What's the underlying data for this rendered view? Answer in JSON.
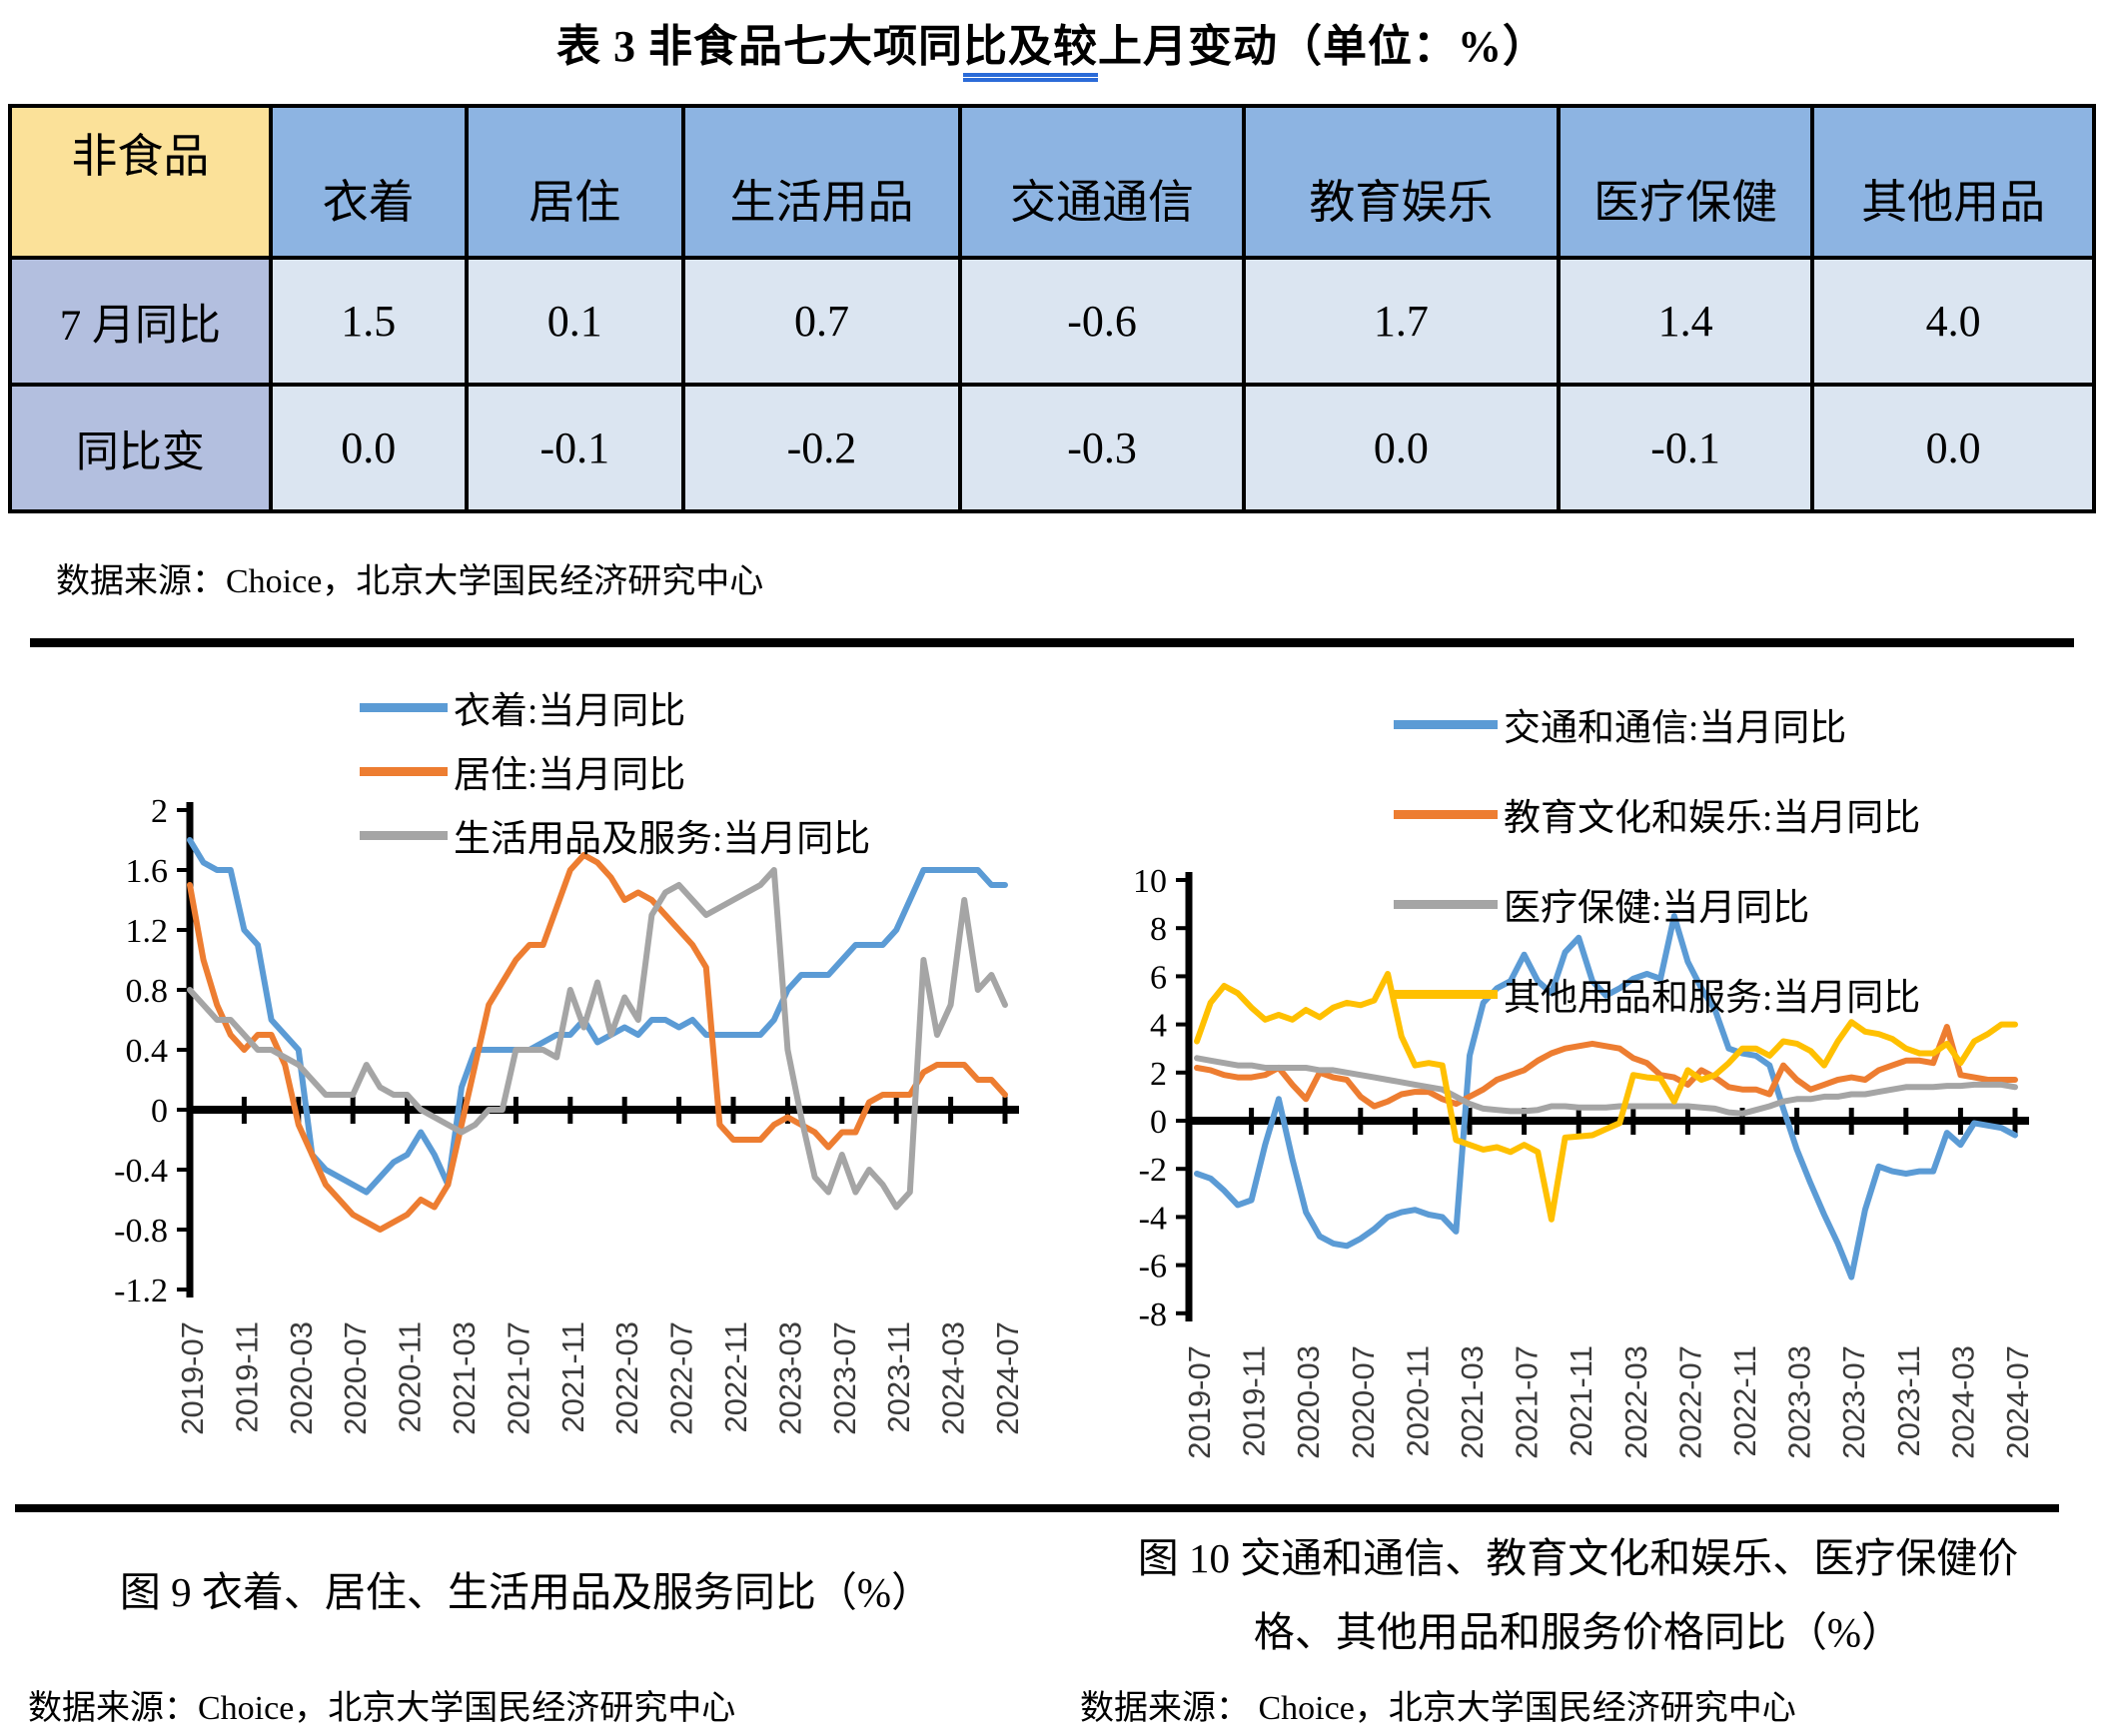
{
  "title": {
    "before": "表 3  非食品七大项同",
    "underlined": "比及较",
    "after": "上月变动（单位：%）"
  },
  "table": {
    "corner_label": "非食品",
    "columns": [
      "衣着",
      "居住",
      "生活用品",
      "交通通信",
      "教育娱乐",
      "医疗保健",
      "其他用品"
    ],
    "rows": [
      {
        "label": "7 月同比",
        "values": [
          "1.5",
          "0.1",
          "0.7",
          "-0.6",
          "1.7",
          "1.4",
          "4.0"
        ]
      },
      {
        "label": "同比变",
        "values": [
          "0.0",
          "-0.1",
          "-0.2",
          "-0.3",
          "0.0",
          "-0.1",
          "0.0"
        ]
      }
    ],
    "source": "数据来源：Choice，北京大学国民经济研究中心",
    "colors": {
      "corner_bg": "#FBE199",
      "header_bg": "#8DB4E2",
      "rowlabel_bg": "#B3BFDF",
      "cell_bg": "#DBE5F1",
      "border": "#000000"
    }
  },
  "chart_data": [
    {
      "type": "line",
      "caption_lines": [
        "图 9  衣着、居住、生活用品及服务同比（%）"
      ],
      "source": "数据来源：Choice，北京大学国民经济研究中心",
      "x_start": "2019-07",
      "x_end": "2024-07",
      "n_points": 61,
      "tick_every": 4,
      "x_tick_labels": [
        "2019-07",
        "2019-11",
        "2020-03",
        "2020-07",
        "2020-11",
        "2021-03",
        "2021-07",
        "2021-11",
        "2022-03",
        "2022-07",
        "2022-11",
        "2023-03",
        "2023-07",
        "2023-11",
        "2024-03",
        "2024-07"
      ],
      "ylim": [
        -1.2,
        2
      ],
      "y_ticks": [
        2,
        1.6,
        1.2,
        0.8,
        0.4,
        0,
        -0.4,
        -0.8,
        -1.2
      ],
      "y_tick_labels": [
        "2",
        "1.6",
        "1.2",
        "0.8",
        "0.4",
        "0",
        "-0.4",
        "-0.8",
        "-1.2"
      ],
      "grid": false,
      "legend_position": "top-center-overlay",
      "series": [
        {
          "name": "衣着:当月同比",
          "color": "#5B9BD5",
          "values": [
            1.8,
            1.65,
            1.6,
            1.6,
            1.2,
            1.1,
            0.6,
            0.5,
            0.4,
            -0.3,
            -0.4,
            -0.45,
            -0.5,
            -0.55,
            -0.45,
            -0.35,
            -0.3,
            -0.15,
            -0.3,
            -0.5,
            0.15,
            0.4,
            0.4,
            0.4,
            0.4,
            0.4,
            0.45,
            0.5,
            0.5,
            0.6,
            0.45,
            0.5,
            0.55,
            0.5,
            0.6,
            0.6,
            0.55,
            0.6,
            0.5,
            0.5,
            0.5,
            0.5,
            0.5,
            0.6,
            0.8,
            0.9,
            0.9,
            0.9,
            1.0,
            1.1,
            1.1,
            1.1,
            1.2,
            1.4,
            1.6,
            1.6,
            1.6,
            1.6,
            1.6,
            1.5,
            1.5
          ]
        },
        {
          "name": "居住:当月同比",
          "color": "#ED7D31",
          "values": [
            1.5,
            1.0,
            0.7,
            0.5,
            0.4,
            0.5,
            0.5,
            0.3,
            -0.1,
            -0.3,
            -0.5,
            -0.6,
            -0.7,
            -0.75,
            -0.8,
            -0.75,
            -0.7,
            -0.6,
            -0.65,
            -0.5,
            -0.1,
            0.3,
            0.7,
            0.85,
            1.0,
            1.1,
            1.1,
            1.35,
            1.6,
            1.7,
            1.65,
            1.55,
            1.4,
            1.45,
            1.4,
            1.3,
            1.2,
            1.1,
            0.95,
            -0.1,
            -0.2,
            -0.2,
            -0.2,
            -0.1,
            -0.05,
            -0.1,
            -0.15,
            -0.25,
            -0.15,
            -0.15,
            0.05,
            0.1,
            0.1,
            0.1,
            0.25,
            0.3,
            0.3,
            0.3,
            0.2,
            0.2,
            0.1
          ]
        },
        {
          "name": "生活用品及服务:当月同比",
          "color": "#A5A5A5",
          "values": [
            0.8,
            0.7,
            0.6,
            0.6,
            0.5,
            0.4,
            0.4,
            0.35,
            0.3,
            0.2,
            0.1,
            0.1,
            0.1,
            0.3,
            0.15,
            0.1,
            0.1,
            0.0,
            -0.05,
            -0.1,
            -0.15,
            -0.1,
            0.0,
            0.0,
            0.4,
            0.4,
            0.4,
            0.35,
            0.8,
            0.55,
            0.85,
            0.5,
            0.75,
            0.6,
            1.3,
            1.45,
            1.5,
            1.4,
            1.3,
            1.35,
            1.4,
            1.45,
            1.5,
            1.6,
            0.4,
            -0.05,
            -0.45,
            -0.55,
            -0.3,
            -0.55,
            -0.4,
            -0.5,
            -0.65,
            -0.55,
            1.0,
            0.5,
            0.7,
            1.4,
            0.8,
            0.9,
            0.7
          ]
        }
      ]
    },
    {
      "type": "line",
      "caption_lines": [
        "图 10  交通和通信、教育文化和娱乐、医疗保健价",
        "格、其他用品和服务价格同比（%）"
      ],
      "source": "数据来源：  Choice，北京大学国民经济研究中心",
      "x_start": "2019-07",
      "x_end": "2024-07",
      "n_points": 61,
      "tick_every": 4,
      "x_tick_labels": [
        "2019-07",
        "2019-11",
        "2020-03",
        "2020-07",
        "2020-11",
        "2021-03",
        "2021-07",
        "2021-11",
        "2022-03",
        "2022-07",
        "2022-11",
        "2023-03",
        "2023-07",
        "2023-11",
        "2024-03",
        "2024-07"
      ],
      "ylim": [
        -8,
        10
      ],
      "y_ticks": [
        10,
        8,
        6,
        4,
        2,
        0,
        -2,
        -4,
        -6,
        -8
      ],
      "y_tick_labels": [
        "10",
        "8",
        "6",
        "4",
        "2",
        "0",
        "-2",
        "-4",
        "-6",
        "-8"
      ],
      "grid": false,
      "legend_position": "top-center-overlay",
      "series": [
        {
          "name": "交通和通信:当月同比",
          "color": "#5B9BD5",
          "values": [
            -2.2,
            -2.4,
            -2.9,
            -3.5,
            -3.3,
            -1.0,
            0.9,
            -1.6,
            -3.8,
            -4.8,
            -5.1,
            -5.2,
            -4.9,
            -4.5,
            -4.0,
            -3.8,
            -3.7,
            -3.9,
            -4.0,
            -4.6,
            2.7,
            4.9,
            5.5,
            5.8,
            6.9,
            5.8,
            5.3,
            7.0,
            7.6,
            5.8,
            5.2,
            5.5,
            5.9,
            6.1,
            5.9,
            8.5,
            6.6,
            5.5,
            4.6,
            3.0,
            2.8,
            2.7,
            2.3,
            0.5,
            -1.2,
            -2.6,
            -3.9,
            -5.1,
            -6.5,
            -3.7,
            -1.9,
            -2.1,
            -2.2,
            -2.1,
            -2.1,
            -0.5,
            -1.0,
            -0.1,
            -0.2,
            -0.3,
            -0.6
          ]
        },
        {
          "name": "教育文化和娱乐:当月同比",
          "color": "#ED7D31",
          "values": [
            2.2,
            2.1,
            1.9,
            1.8,
            1.8,
            1.9,
            2.2,
            1.5,
            0.9,
            2.0,
            1.8,
            1.7,
            1.0,
            0.6,
            0.8,
            1.1,
            1.2,
            1.2,
            0.9,
            0.7,
            1.0,
            1.3,
            1.7,
            1.9,
            2.1,
            2.5,
            2.8,
            3.0,
            3.1,
            3.2,
            3.1,
            3.0,
            2.6,
            2.4,
            1.9,
            1.8,
            1.5,
            2.1,
            1.8,
            1.4,
            1.3,
            1.3,
            1.1,
            2.3,
            1.7,
            1.3,
            1.5,
            1.7,
            1.8,
            1.7,
            2.1,
            2.3,
            2.5,
            2.5,
            2.4,
            3.9,
            1.9,
            1.8,
            1.7,
            1.7,
            1.7
          ]
        },
        {
          "name": "医疗保健:当月同比",
          "color": "#A5A5A5",
          "values": [
            2.6,
            2.5,
            2.4,
            2.3,
            2.3,
            2.2,
            2.2,
            2.2,
            2.2,
            2.1,
            2.1,
            2.0,
            1.9,
            1.8,
            1.7,
            1.6,
            1.5,
            1.4,
            1.3,
            1.0,
            0.7,
            0.5,
            0.45,
            0.4,
            0.4,
            0.45,
            0.6,
            0.6,
            0.55,
            0.55,
            0.55,
            0.6,
            0.6,
            0.6,
            0.6,
            0.6,
            0.6,
            0.55,
            0.5,
            0.35,
            0.3,
            0.45,
            0.6,
            0.8,
            0.9,
            0.9,
            1.0,
            1.0,
            1.1,
            1.1,
            1.2,
            1.3,
            1.4,
            1.4,
            1.4,
            1.45,
            1.45,
            1.5,
            1.5,
            1.5,
            1.4
          ]
        },
        {
          "name": "其他用品和服务:当月同比",
          "color": "#FFC000",
          "values": [
            3.3,
            4.9,
            5.6,
            5.3,
            4.7,
            4.2,
            4.4,
            4.2,
            4.6,
            4.3,
            4.7,
            4.9,
            4.8,
            5.0,
            6.1,
            3.5,
            2.3,
            2.4,
            2.3,
            -0.8,
            -1.0,
            -1.2,
            -1.1,
            -1.3,
            -1.0,
            -1.3,
            -4.1,
            -0.7,
            -0.65,
            -0.6,
            -0.35,
            -0.1,
            1.9,
            1.8,
            1.75,
            0.8,
            2.1,
            1.7,
            1.9,
            2.4,
            3.0,
            3.0,
            2.7,
            3.3,
            3.2,
            2.9,
            2.3,
            3.3,
            4.1,
            3.7,
            3.6,
            3.4,
            3.0,
            2.8,
            2.8,
            3.2,
            2.4,
            3.3,
            3.6,
            4.0,
            4.0
          ]
        }
      ]
    }
  ]
}
